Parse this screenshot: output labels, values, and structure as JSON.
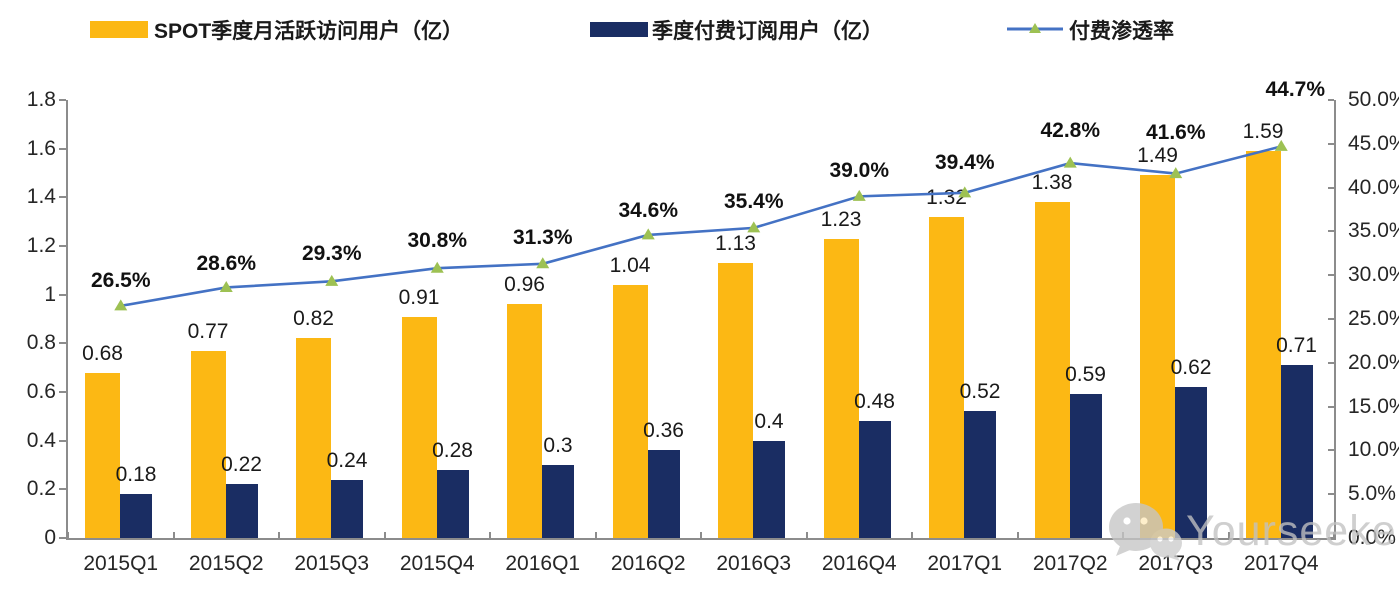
{
  "chart_data": {
    "type": "bar",
    "title": "",
    "grid": false,
    "legend_position": "top",
    "categories": [
      "2015Q1",
      "2015Q2",
      "2015Q3",
      "2015Q4",
      "2016Q1",
      "2016Q2",
      "2016Q3",
      "2016Q4",
      "2017Q1",
      "2017Q2",
      "2017Q3",
      "2017Q4"
    ],
    "series": [
      {
        "name": "SPOT季度月活跃访问用户（亿）",
        "type": "bar",
        "axis": "left",
        "color": "#FCB814",
        "values": [
          0.68,
          0.77,
          0.82,
          0.91,
          0.96,
          1.04,
          1.13,
          1.23,
          1.32,
          1.38,
          1.49,
          1.59
        ],
        "labels": [
          "0.68",
          "0.77",
          "0.82",
          "0.91",
          "0.96",
          "1.04",
          "1.13",
          "1.23",
          "1.32",
          "1.38",
          "1.49",
          "1.59"
        ]
      },
      {
        "name": "季度付费订阅用户（亿）",
        "type": "bar",
        "axis": "left",
        "color": "#1A2D63",
        "values": [
          0.18,
          0.22,
          0.24,
          0.28,
          0.3,
          0.36,
          0.4,
          0.48,
          0.52,
          0.59,
          0.62,
          0.71
        ],
        "labels": [
          "0.18",
          "0.22",
          "0.24",
          "0.28",
          "0.3",
          "0.36",
          "0.4",
          "0.48",
          "0.52",
          "0.59",
          "0.62",
          "0.71"
        ]
      },
      {
        "name": "付费渗透率",
        "type": "line",
        "axis": "right",
        "color": "#4472C4",
        "marker": "triangle",
        "marker_color": "#9DC153",
        "values": [
          26.5,
          28.6,
          29.3,
          30.8,
          31.3,
          34.6,
          35.4,
          39.0,
          39.4,
          42.8,
          41.6,
          44.7
        ],
        "labels": [
          "26.5%",
          "28.6%",
          "29.3%",
          "30.8%",
          "31.3%",
          "34.6%",
          "35.4%",
          "39.0%",
          "39.4%",
          "42.8%",
          "41.6%",
          "44.7%"
        ],
        "label_dy": [
          -25,
          -23,
          -27,
          -27,
          -26,
          -24,
          -26,
          -25,
          -30,
          -32,
          -41,
          -56
        ],
        "label_dx": [
          0,
          0,
          0,
          0,
          0,
          0,
          0,
          0,
          0,
          0,
          0,
          14
        ]
      }
    ],
    "left_axis": {
      "min": 0,
      "max": 1.8,
      "tick_values": [
        1.8,
        1.6,
        1.4,
        1.2,
        1.0,
        0.8,
        0.6,
        0.4,
        0.2,
        0
      ],
      "tick_labels": [
        "1.8",
        "1.6",
        "1.4",
        "1.2",
        "1",
        "0.8",
        "0.6",
        "0.4",
        "0.2",
        "0"
      ]
    },
    "right_axis": {
      "min": 0,
      "max": 50,
      "tick_values": [
        50,
        45,
        40,
        35,
        30,
        25,
        20,
        15,
        10,
        5,
        0
      ],
      "tick_labels": [
        "50.0%",
        "45.0%",
        "40.0%",
        "35.0%",
        "30.0%",
        "25.0%",
        "20.0%",
        "15.0%",
        "10.0%",
        "5.0%",
        "0.0%"
      ]
    }
  },
  "watermark": {
    "icon": "wechat-icon",
    "text": "Yourseeker"
  }
}
